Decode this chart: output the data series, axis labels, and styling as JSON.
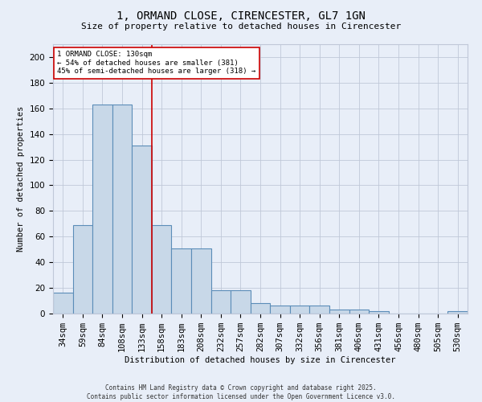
{
  "title_line1": "1, ORMAND CLOSE, CIRENCESTER, GL7 1GN",
  "title_line2": "Size of property relative to detached houses in Cirencester",
  "xlabel": "Distribution of detached houses by size in Cirencester",
  "ylabel": "Number of detached properties",
  "categories": [
    "34sqm",
    "59sqm",
    "84sqm",
    "108sqm",
    "133sqm",
    "158sqm",
    "183sqm",
    "208sqm",
    "232sqm",
    "257sqm",
    "282sqm",
    "307sqm",
    "332sqm",
    "356sqm",
    "381sqm",
    "406sqm",
    "431sqm",
    "456sqm",
    "480sqm",
    "505sqm",
    "530sqm"
  ],
  "values": [
    16,
    69,
    163,
    163,
    131,
    69,
    51,
    51,
    18,
    18,
    8,
    6,
    6,
    6,
    3,
    3,
    2,
    0,
    0,
    0,
    2
  ],
  "bar_color": "#c8d8e8",
  "bar_edge_color": "#5b8db8",
  "grid_color": "#c0c8d8",
  "background_color": "#e8eef8",
  "vline_x": 4.5,
  "vline_color": "#cc0000",
  "annotation_text": "1 ORMAND CLOSE: 130sqm\n← 54% of detached houses are smaller (381)\n45% of semi-detached houses are larger (318) →",
  "annotation_box_color": "#ffffff",
  "annotation_border_color": "#cc0000",
  "footer_line1": "Contains HM Land Registry data © Crown copyright and database right 2025.",
  "footer_line2": "Contains public sector information licensed under the Open Government Licence v3.0.",
  "ylim": [
    0,
    210
  ],
  "yticks": [
    0,
    20,
    40,
    60,
    80,
    100,
    120,
    140,
    160,
    180,
    200
  ]
}
